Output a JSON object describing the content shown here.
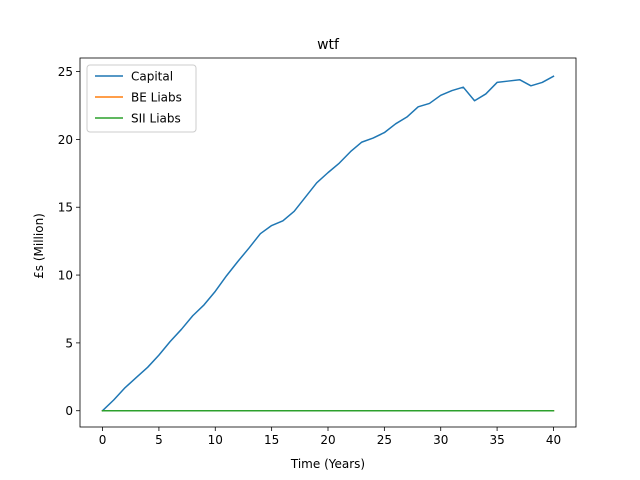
{
  "chart_data": {
    "type": "line",
    "title": "wtf",
    "xlabel": "Time (Years)",
    "ylabel": "£s (Million)",
    "xlim": [
      -2,
      42
    ],
    "ylim": [
      -1.2,
      26
    ],
    "xticks": [
      0,
      5,
      10,
      15,
      20,
      25,
      30,
      35,
      40
    ],
    "yticks": [
      0,
      5,
      10,
      15,
      20,
      25
    ],
    "grid": false,
    "legend": "top-left",
    "x": [
      0,
      1,
      2,
      3,
      4,
      5,
      6,
      7,
      8,
      9,
      10,
      11,
      12,
      13,
      14,
      15,
      16,
      17,
      18,
      19,
      20,
      21,
      22,
      23,
      24,
      25,
      26,
      27,
      28,
      29,
      30,
      31,
      32,
      33,
      34,
      35,
      36,
      37,
      38,
      39,
      40
    ],
    "series": [
      {
        "name": "Capital",
        "color": "#1f77b4",
        "values": [
          0,
          0.8,
          1.7,
          2.45,
          3.2,
          4.1,
          5.1,
          6.0,
          7.0,
          7.8,
          8.8,
          9.95,
          11.0,
          12.0,
          13.05,
          13.65,
          14.0,
          14.7,
          15.75,
          16.8,
          17.55,
          18.25,
          19.1,
          19.8,
          20.1,
          20.5,
          21.15,
          21.65,
          22.4,
          22.65,
          23.25,
          23.6,
          23.85,
          22.85,
          23.35,
          24.2,
          24.3,
          24.4,
          23.95,
          24.2,
          24.65
        ]
      },
      {
        "name": "BE Liabs",
        "color": "#ff7f0e",
        "values": [
          0,
          0,
          0,
          0,
          0,
          0,
          0,
          0,
          0,
          0,
          0,
          0,
          0,
          0,
          0,
          0,
          0,
          0,
          0,
          0,
          0,
          0,
          0,
          0,
          0,
          0,
          0,
          0,
          0,
          0,
          0,
          0,
          0,
          0,
          0,
          0,
          0,
          0,
          0,
          0,
          0
        ]
      },
      {
        "name": "SII Liabs",
        "color": "#2ca02c",
        "values": [
          0,
          0,
          0,
          0,
          0,
          0,
          0,
          0,
          0,
          0,
          0,
          0,
          0,
          0,
          0,
          0,
          0,
          0,
          0,
          0,
          0,
          0,
          0,
          0,
          0,
          0,
          0,
          0,
          0,
          0,
          0,
          0,
          0,
          0,
          0,
          0,
          0,
          0,
          0,
          0,
          0
        ]
      }
    ]
  }
}
